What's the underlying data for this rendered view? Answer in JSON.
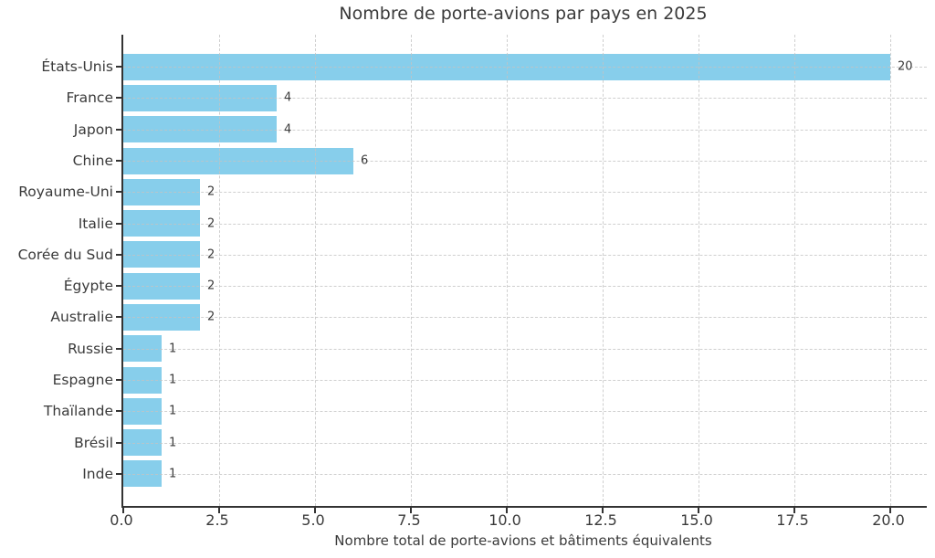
{
  "chart_data": {
    "type": "bar",
    "orientation": "horizontal",
    "title": "Nombre de porte-avions par pays en 2025",
    "xlabel": "Nombre total de porte-avions et bâtiments équivalents",
    "ylabel": "",
    "categories": [
      "États-Unis",
      "France",
      "Japon",
      "Chine",
      "Royaume-Uni",
      "Italie",
      "Corée du Sud",
      "Égypte",
      "Australie",
      "Russie",
      "Espagne",
      "Thaïlande",
      "Brésil",
      "Inde"
    ],
    "values": [
      20,
      4,
      4,
      6,
      2,
      2,
      2,
      2,
      2,
      1,
      1,
      1,
      1,
      1
    ],
    "value_labels": [
      "20",
      "4",
      "4",
      "6",
      "2",
      "2",
      "2",
      "2",
      "2",
      "1",
      "1",
      "1",
      "1",
      "1"
    ],
    "x_tick_labels": [
      "0.0",
      "2.5",
      "5.0",
      "7.5",
      "10.0",
      "12.5",
      "15.0",
      "17.5",
      "20.0"
    ],
    "x_tick_values": [
      0,
      2.5,
      5,
      7.5,
      10,
      12.5,
      15,
      17.5,
      20
    ],
    "xlim": [
      0,
      21
    ],
    "grid": true,
    "grid_style": "dashed",
    "legend": "none",
    "colors": {
      "bar": "#87CEEB",
      "text": "#3a3a3a",
      "grid": "#c3c3c3",
      "axis": "#333333",
      "background": "#ffffff"
    }
  }
}
